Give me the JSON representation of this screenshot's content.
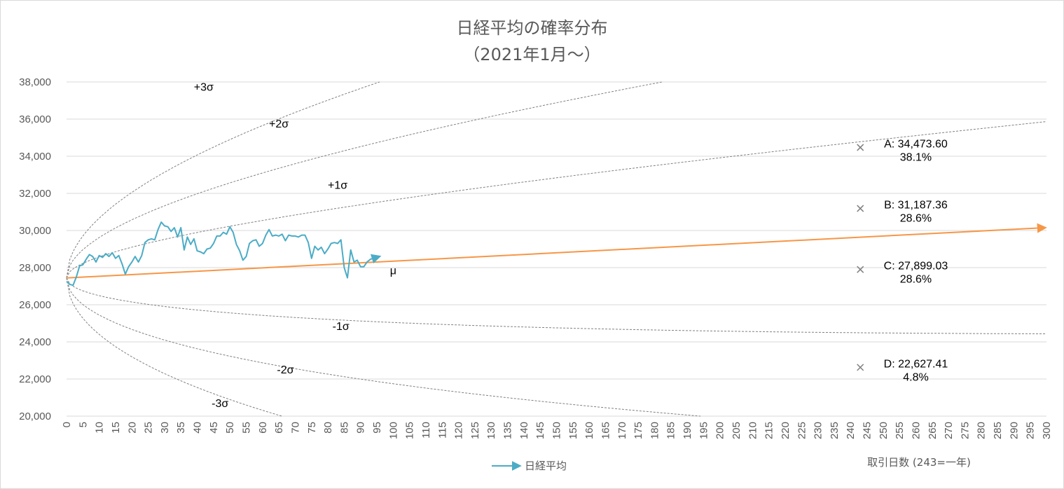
{
  "chart_data": {
    "type": "line",
    "title": "日経平均の確率分布",
    "subtitle": "（2021年1月～）",
    "xlabel": "取引日数 (243=一年)",
    "xlim": [
      0,
      300
    ],
    "ylim": [
      20000,
      38000
    ],
    "x_ticks": [
      0,
      5,
      10,
      15,
      20,
      25,
      30,
      35,
      40,
      45,
      50,
      55,
      60,
      65,
      70,
      75,
      80,
      85,
      90,
      95,
      100,
      105,
      110,
      115,
      120,
      125,
      130,
      135,
      140,
      145,
      150,
      155,
      160,
      165,
      170,
      175,
      180,
      185,
      190,
      195,
      200,
      205,
      210,
      215,
      220,
      225,
      230,
      235,
      240,
      245,
      250,
      255,
      260,
      265,
      270,
      275,
      280,
      285,
      290,
      295,
      300
    ],
    "y_ticks": [
      20000,
      22000,
      24000,
      26000,
      28000,
      30000,
      32000,
      34000,
      36000,
      38000
    ],
    "y_tick_labels": [
      "20,000",
      "22,000",
      "24,000",
      "26,000",
      "28,000",
      "30,000",
      "32,000",
      "34,000",
      "36,000",
      "38,000"
    ],
    "grid": "horizontal",
    "legend_position": "bottom",
    "colors": {
      "nikkei": "#4bacc6",
      "mu": "#f79646",
      "sigma": "#808080",
      "marker": "#7f7f7f",
      "grid": "#d9d9d9",
      "axis_text": "#595959"
    },
    "series": [
      {
        "name": "日経平均",
        "x": [
          0,
          1,
          2,
          3,
          4,
          5,
          6,
          7,
          8,
          9,
          10,
          11,
          12,
          13,
          14,
          15,
          16,
          17,
          18,
          19,
          20,
          21,
          22,
          23,
          24,
          25,
          26,
          27,
          28,
          29,
          30,
          31,
          32,
          33,
          34,
          35,
          36,
          37,
          38,
          39,
          40,
          41,
          42,
          43,
          44,
          45,
          46,
          47,
          48,
          49,
          50,
          51,
          52,
          53,
          54,
          55,
          56,
          57,
          58,
          59,
          60,
          61,
          62,
          63,
          64,
          65,
          66,
          67,
          68,
          69,
          70,
          71,
          72,
          73,
          74,
          75,
          76,
          77,
          78,
          79,
          80,
          81,
          82,
          83,
          84,
          85,
          86,
          87,
          88,
          89,
          90,
          91,
          92,
          93
        ],
        "y": [
          27258,
          27100,
          27050,
          27500,
          28100,
          28150,
          28450,
          28700,
          28600,
          28300,
          28650,
          28550,
          28750,
          28600,
          28800,
          28500,
          28650,
          28200,
          27650,
          28050,
          28300,
          28600,
          28300,
          28650,
          29350,
          29500,
          29550,
          29500,
          30050,
          30450,
          30250,
          30200,
          29950,
          30150,
          29650,
          30150,
          28950,
          29650,
          29250,
          29550,
          28900,
          28850,
          28750,
          29000,
          29050,
          29300,
          29700,
          29700,
          29900,
          29800,
          30200,
          29900,
          29250,
          28900,
          28400,
          28600,
          29300,
          29450,
          29500,
          29150,
          29300,
          29750,
          30050,
          29700,
          29750,
          29700,
          29800,
          29450,
          29750,
          29700,
          29700,
          29650,
          29750,
          29750,
          29350,
          28500,
          29150,
          28950,
          29100,
          28750,
          29000,
          29300,
          29350,
          29300,
          29500,
          28000,
          27450,
          28950,
          28300,
          28400,
          28050,
          28050,
          28300,
          28450
        ]
      }
    ],
    "mu": {
      "label": "μ",
      "start": [
        0,
        27444
      ],
      "end": [
        300,
        30150
      ]
    },
    "sigma_bands": [
      {
        "label": "+3σ"
      },
      {
        "label": "+2σ"
      },
      {
        "label": "+1σ"
      },
      {
        "label": "-1σ"
      },
      {
        "label": "-2σ"
      },
      {
        "label": "-3σ"
      }
    ],
    "points": [
      {
        "label": "A: 34,473.60",
        "prob": "38.1%",
        "x": 243,
        "y": 34473.6
      },
      {
        "label": "B: 31,187.36",
        "prob": "28.6%",
        "x": 243,
        "y": 31187.36
      },
      {
        "label": "C: 27,899.03",
        "prob": "28.6%",
        "x": 243,
        "y": 27899.03
      },
      {
        "label": "D: 22,627.41",
        "prob": "4.8%",
        "x": 243,
        "y": 22627.41
      }
    ]
  }
}
